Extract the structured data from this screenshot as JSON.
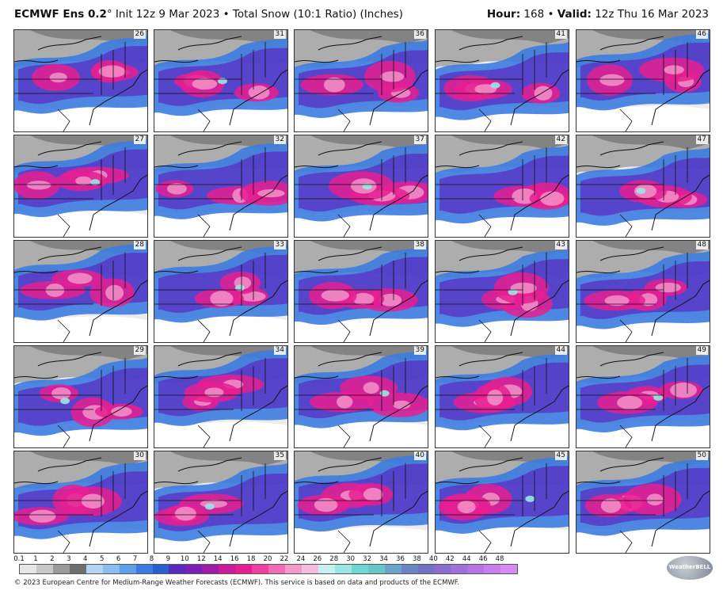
{
  "header": {
    "model": "ECMWF Ens 0.2",
    "degree": "°",
    "init_text": "Init 12z 9 Mar 2023",
    "bullet": "•",
    "product": "Total Snow (10:1 Ratio) (Inches)",
    "hour_label": "Hour:",
    "hour_value": "168",
    "valid_label": "Valid:",
    "valid_value": "12z Thu 16 Mar 2023"
  },
  "panels": [
    {
      "member": "26"
    },
    {
      "member": "31"
    },
    {
      "member": "36"
    },
    {
      "member": "41"
    },
    {
      "member": "46"
    },
    {
      "member": "27"
    },
    {
      "member": "32"
    },
    {
      "member": "37"
    },
    {
      "member": "42"
    },
    {
      "member": "47"
    },
    {
      "member": "28"
    },
    {
      "member": "33"
    },
    {
      "member": "38"
    },
    {
      "member": "43"
    },
    {
      "member": "48"
    },
    {
      "member": "29"
    },
    {
      "member": "34"
    },
    {
      "member": "39"
    },
    {
      "member": "44"
    },
    {
      "member": "49"
    },
    {
      "member": "30"
    },
    {
      "member": "35"
    },
    {
      "member": "40"
    },
    {
      "member": "45"
    },
    {
      "member": "50"
    }
  ],
  "legend": {
    "labels": [
      "0.1",
      "1",
      "2",
      "3",
      "4",
      "5",
      "6",
      "7",
      "8",
      "9",
      "10",
      "12",
      "14",
      "16",
      "18",
      "20",
      "22",
      "24",
      "26",
      "28",
      "30",
      "32",
      "34",
      "36",
      "38",
      "40",
      "42",
      "44",
      "46",
      "48"
    ],
    "colors": [
      "#e6e6e6",
      "#c8c8c8",
      "#9a9a9a",
      "#6e6e6e",
      "#b4d4f2",
      "#8cbcf0",
      "#5f9ee8",
      "#3c7ce0",
      "#2a5fd0",
      "#5a2ac0",
      "#7a1fb8",
      "#a01aa8",
      "#c81a9a",
      "#e61f90",
      "#f03fa0",
      "#f26bb6",
      "#f498cc",
      "#f6bcdc",
      "#c8f0f0",
      "#9ae6e6",
      "#6fd6d6",
      "#66c6c8",
      "#6aa4c8",
      "#6a84c4",
      "#7470c4",
      "#8a6cd0",
      "#9f70da",
      "#b474e4",
      "#c87cee",
      "#d88af4"
    ]
  },
  "footer": {
    "copyright": "© 2023 European Centre for Medium-Range Weather Forecasts (ECMWF). This service is based on data and products of the ECMWF."
  },
  "logo": {
    "text": "WeatherBELL"
  }
}
